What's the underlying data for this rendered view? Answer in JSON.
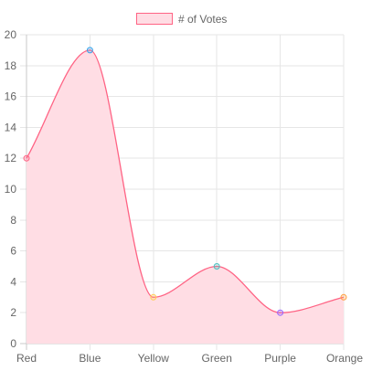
{
  "chart_data": {
    "type": "line",
    "categories": [
      "Red",
      "Blue",
      "Yellow",
      "Green",
      "Purple",
      "Orange"
    ],
    "series": [
      {
        "name": "# of Votes",
        "values": [
          12,
          19,
          3,
          5,
          2,
          3
        ],
        "fill": true,
        "line_color": "#ff6384",
        "fill_color": "#ffdde4"
      }
    ],
    "point_colors": [
      "#ff6384",
      "#36a2eb",
      "#ffce56",
      "#4bc0c0",
      "#9966ff",
      "#ff9f40"
    ],
    "ylim": [
      0,
      20
    ],
    "yticks": [
      0,
      2,
      4,
      6,
      8,
      10,
      12,
      14,
      16,
      18,
      20
    ],
    "grid": true,
    "legend": "top",
    "curve": "smooth"
  }
}
